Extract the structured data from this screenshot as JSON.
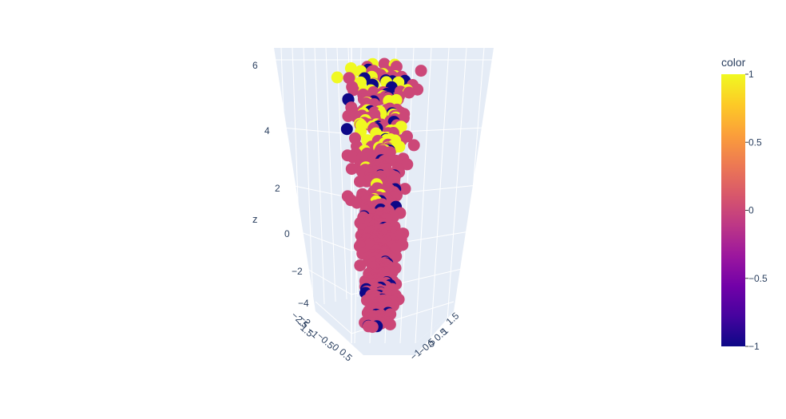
{
  "chart_data": {
    "type": "scatter3d",
    "z_axis": {
      "title": "z",
      "tick_labels": [
        "6",
        "4",
        "2",
        "0",
        "−2",
        "−4"
      ]
    },
    "x_axis": {
      "title": "",
      "tick_labels": [
        "−2.5",
        "−2",
        "−1.5",
        "−1",
        "−0.5",
        "0",
        "0.5"
      ]
    },
    "y_axis": {
      "title": "",
      "tick_labels": [
        "1.5",
        "1",
        "0.5",
        "0",
        "−0.5",
        "−1"
      ]
    },
    "colorbar": {
      "title": "color",
      "range": [
        -1,
        1
      ],
      "tick_labels": [
        "1",
        "0.5",
        "0",
        "−0.5",
        "−1"
      ],
      "tick_values": [
        1,
        0.5,
        0,
        -0.5,
        -1
      ],
      "colorscale": [
        "#0d0887",
        "#46039f",
        "#7201a8",
        "#9c179e",
        "#bd3786",
        "#d8576b",
        "#ed7953",
        "#fb9f3a",
        "#fdca26",
        "#f0f921"
      ]
    },
    "color_categories": [
      -1,
      0,
      1
    ],
    "marker_colors": {
      "-1": "#0d0887",
      "0": "#cc4778",
      "1": "#f0f921"
    },
    "scene_background": "#e5ecf6",
    "gridline_color": "#ffffff"
  }
}
